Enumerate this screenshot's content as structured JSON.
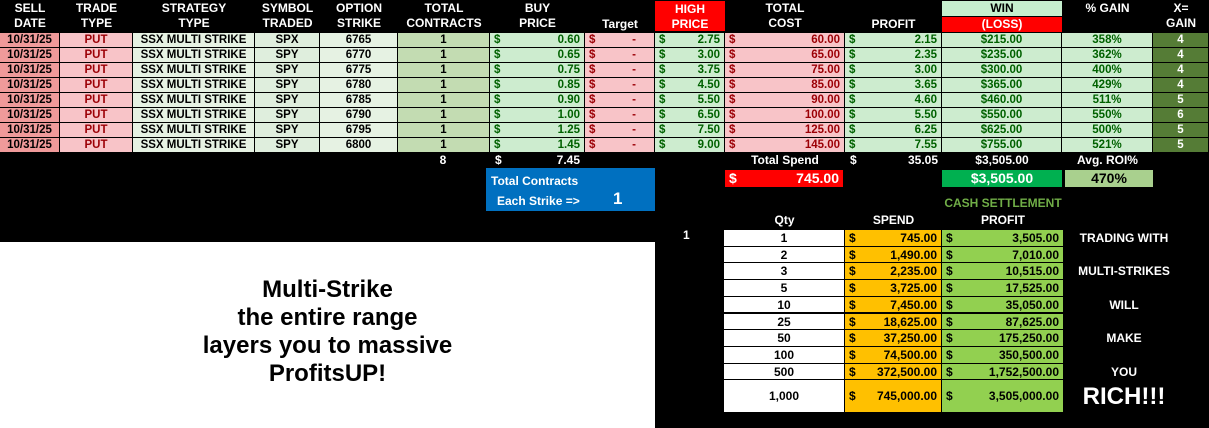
{
  "headers": {
    "sell_date": "SELL\nDATE",
    "trade_type": "TRADE\nTYPE",
    "strategy": "STRATEGY\nTYPE",
    "symbol": "SYMBOL\nTRADED",
    "strike": "OPTION\nSTRIKE",
    "contracts": "TOTAL\nCONTRACTS",
    "buy": "BUY\nPRICE",
    "target": "Target",
    "high": "HIGH\nPRICE",
    "cost": "TOTAL\nCOST",
    "profit": "PROFIT",
    "win": "WIN",
    "loss": "(LOSS)",
    "gain_pct": "% GAIN",
    "x_gain": "X=\nGAIN"
  },
  "rows": [
    [
      "10/31/25",
      "PUT",
      "SSX MULTI STRIKE",
      "SPX",
      "6765",
      "1",
      "0.60",
      "-",
      "2.75",
      "60.00",
      "2.15",
      "$215.00",
      "358%",
      "4"
    ],
    [
      "10/31/25",
      "PUT",
      "SSX MULTI STRIKE",
      "SPY",
      "6770",
      "1",
      "0.65",
      "-",
      "3.00",
      "65.00",
      "2.35",
      "$235.00",
      "362%",
      "4"
    ],
    [
      "10/31/25",
      "PUT",
      "SSX MULTI STRIKE",
      "SPY",
      "6775",
      "1",
      "0.75",
      "-",
      "3.75",
      "75.00",
      "3.00",
      "$300.00",
      "400%",
      "4"
    ],
    [
      "10/31/25",
      "PUT",
      "SSX MULTI STRIKE",
      "SPY",
      "6780",
      "1",
      "0.85",
      "-",
      "4.50",
      "85.00",
      "3.65",
      "$365.00",
      "429%",
      "4"
    ],
    [
      "10/31/25",
      "PUT",
      "SSX MULTI STRIKE",
      "SPY",
      "6785",
      "1",
      "0.90",
      "-",
      "5.50",
      "90.00",
      "4.60",
      "$460.00",
      "511%",
      "5"
    ],
    [
      "10/31/25",
      "PUT",
      "SSX MULTI STRIKE",
      "SPY",
      "6790",
      "1",
      "1.00",
      "-",
      "6.50",
      "100.00",
      "5.50",
      "$550.00",
      "550%",
      "6"
    ],
    [
      "10/31/25",
      "PUT",
      "SSX MULTI STRIKE",
      "SPY",
      "6795",
      "1",
      "1.25",
      "-",
      "7.50",
      "125.00",
      "6.25",
      "$625.00",
      "500%",
      "5"
    ],
    [
      "10/31/25",
      "PUT",
      "SSX MULTI STRIKE",
      "SPY",
      "6800",
      "1",
      "1.45",
      "-",
      "9.00",
      "145.00",
      "7.55",
      "$755.00",
      "521%",
      "5"
    ]
  ],
  "totals": {
    "contracts": "8",
    "currency": "$",
    "buy": "7.45",
    "spend_label": "Total Spend",
    "profit": "35.05",
    "win": "$3,505.00",
    "roi_label": "Avg. ROI%"
  },
  "summary": {
    "spend": "745.00",
    "win": "$3,505.00",
    "roi": "470%"
  },
  "blue_box": {
    "title": "Total Contracts",
    "each_label": "Each Strike =>",
    "each_value": "1"
  },
  "promo": {
    "line1": "Multi-Strike",
    "line2": "the entire range",
    "line3": "layers you to massive",
    "line4": "ProfitsUP!"
  },
  "cash": {
    "title": "CASH SETTLEMENT",
    "qty_label": "Qty",
    "spend_label": "SPEND",
    "profit_label": "PROFIT",
    "marker": "1",
    "rows": [
      [
        "1",
        "745.00",
        "3,505.00"
      ],
      [
        "2",
        "1,490.00",
        "7,010.00"
      ],
      [
        "3",
        "2,235.00",
        "10,515.00"
      ],
      [
        "5",
        "3,725.00",
        "17,525.00"
      ],
      [
        "10",
        "7,450.00",
        "35,050.00"
      ],
      [
        "25",
        "18,625.00",
        "87,625.00"
      ],
      [
        "50",
        "37,250.00",
        "175,250.00"
      ],
      [
        "100",
        "74,500.00",
        "350,500.00"
      ],
      [
        "500",
        "372,500.00",
        "1,752,500.00"
      ],
      [
        "1,000",
        "745,000.00",
        "3,505,000.00"
      ]
    ],
    "slogan": [
      "TRADING WITH",
      "",
      "MULTI-STRIKES",
      "",
      "WILL",
      "",
      "MAKE",
      "",
      "YOU",
      "RICH!!!"
    ]
  },
  "colors": {
    "red": "#ff0000",
    "green": "#00b050",
    "blue": "#0070c0",
    "orange": "#ffc000",
    "lime": "#92d050"
  }
}
